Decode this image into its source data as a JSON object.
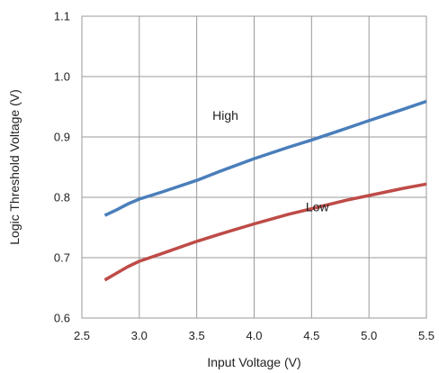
{
  "chart_data": {
    "type": "line",
    "title": "",
    "xlabel": "Input Voltage (V)",
    "ylabel": "Logic Threshold Voltage (V)",
    "xlim": [
      2.5,
      5.5
    ],
    "ylim": [
      0.6,
      1.1
    ],
    "x_ticks": [
      2.5,
      3.0,
      3.5,
      4.0,
      4.5,
      5.0,
      5.5
    ],
    "x_tick_labels": [
      "2.5",
      "3.0",
      "3.5",
      "4.0",
      "4.5",
      "5.0",
      "5.5"
    ],
    "y_ticks": [
      0.6,
      0.7,
      0.8,
      0.9,
      1.0,
      1.1
    ],
    "y_tick_labels": [
      "0.6",
      "0.7",
      "0.8",
      "0.9",
      "1.0",
      "1.1"
    ],
    "grid": true,
    "legend": "none",
    "series": [
      {
        "name": "High",
        "color": "#4a7ebb",
        "x": [
          2.7,
          2.8,
          2.9,
          3.0,
          3.2,
          3.5,
          3.7,
          4.0,
          4.3,
          4.5,
          4.8,
          5.0,
          5.3,
          5.5
        ],
        "y": [
          0.77,
          0.779,
          0.789,
          0.797,
          0.809,
          0.828,
          0.843,
          0.864,
          0.883,
          0.895,
          0.914,
          0.927,
          0.946,
          0.959
        ]
      },
      {
        "name": "Low",
        "color": "#be4b48",
        "x": [
          2.7,
          2.8,
          2.9,
          3.0,
          3.2,
          3.5,
          3.7,
          4.0,
          4.3,
          4.5,
          4.8,
          5.0,
          5.3,
          5.5
        ],
        "y": [
          0.663,
          0.674,
          0.685,
          0.694,
          0.707,
          0.727,
          0.739,
          0.756,
          0.772,
          0.781,
          0.795,
          0.803,
          0.815,
          0.822
        ]
      }
    ],
    "annotations": [
      {
        "text": "High",
        "x": 3.75,
        "y": 0.928
      },
      {
        "text": "Low",
        "x": 4.55,
        "y": 0.777
      }
    ]
  }
}
